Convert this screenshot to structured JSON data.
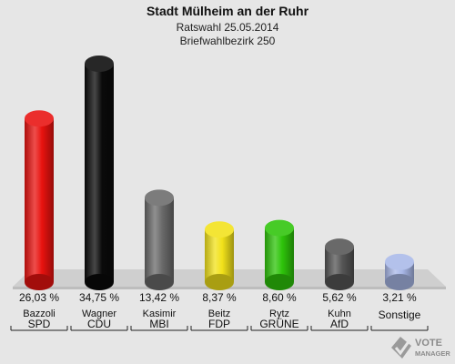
{
  "header": {
    "title": "Stadt Mülheim an der Ruhr",
    "subtitle": "Ratswahl 25.05.2014",
    "subtitle2": "Briefwahlbezirk 250"
  },
  "chart_data": {
    "type": "bar",
    "title": "Stadt Mülheim an der Ruhr",
    "categories": [
      "SPD",
      "CDU",
      "MBI",
      "FDP",
      "GRÜNE",
      "AfD",
      "Sonstige"
    ],
    "candidates": [
      "Bazzoli",
      "Wagner",
      "Kasimir",
      "Beitz",
      "Rytz",
      "Kuhn",
      ""
    ],
    "values": [
      26.03,
      34.75,
      13.42,
      8.37,
      8.6,
      5.62,
      3.21
    ],
    "value_labels": [
      "26,03 %",
      "34,75 %",
      "13,42 %",
      "8,37 %",
      "8,60 %",
      "5,62 %",
      "3,21 %"
    ],
    "colors": [
      "#e8120f",
      "#0a0a0a",
      "#6a6a6a",
      "#f2e21a",
      "#2ec40a",
      "#555555",
      "#a9b8e8"
    ],
    "ylim": [
      0,
      36
    ],
    "grid": false,
    "legend": "none"
  },
  "watermark": {
    "line1": "VOTE",
    "line2": "MANAGER"
  }
}
